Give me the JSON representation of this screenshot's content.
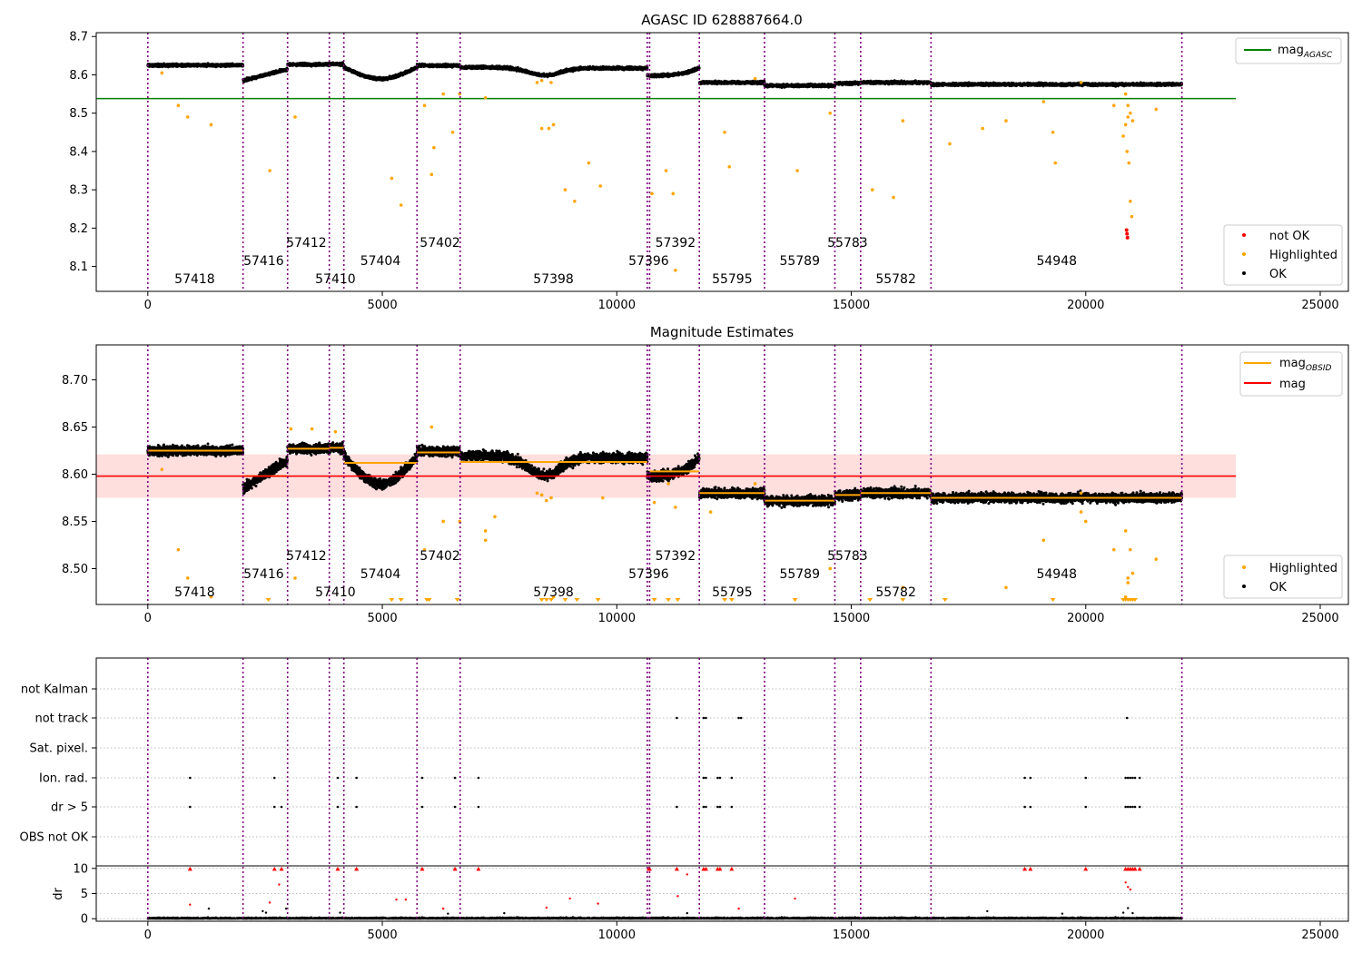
{
  "chart_data": [
    {
      "type": "scatter",
      "title": "AGASC ID 628887664.0",
      "xlim": [
        -1100,
        25600
      ],
      "ylim": [
        8.035,
        8.71
      ],
      "x_ticks": [
        0,
        5000,
        10000,
        15000,
        20000,
        25000
      ],
      "y_ticks": [
        8.1,
        8.2,
        8.3,
        8.4,
        8.5,
        8.6,
        8.7
      ],
      "y_tick_labels": [
        "8.1",
        "8.2",
        "8.3",
        "8.4",
        "8.5",
        "8.6",
        "8.7"
      ],
      "obs_boundaries": [
        0,
        2030,
        2980,
        3870,
        4180,
        5740,
        6660,
        10650,
        10700,
        11760,
        13150,
        14650,
        15200,
        16700,
        22050
      ],
      "obsid_labels": [
        {
          "text": "57418",
          "x": 1000,
          "row": 0
        },
        {
          "text": "57416",
          "x": 2470,
          "row": 1
        },
        {
          "text": "57412",
          "x": 3380,
          "row": 2
        },
        {
          "text": "57410",
          "x": 4000,
          "row": 0
        },
        {
          "text": "57404",
          "x": 4960,
          "row": 1
        },
        {
          "text": "57402",
          "x": 6230,
          "row": 2
        },
        {
          "text": "57398",
          "x": 8650,
          "row": 0
        },
        {
          "text": "57396",
          "x": 10680,
          "row": 1
        },
        {
          "text": "57392",
          "x": 11250,
          "row": 2
        },
        {
          "text": "55795",
          "x": 12460,
          "row": 0
        },
        {
          "text": "55789",
          "x": 13900,
          "row": 1
        },
        {
          "text": "55783",
          "x": 14920,
          "row": 2
        },
        {
          "text": "55782",
          "x": 15950,
          "row": 0
        },
        {
          "text": "54948",
          "x": 19380,
          "row": 1
        }
      ],
      "segments": [
        {
          "x": [
            0,
            2030
          ],
          "y": 8.625
        },
        {
          "x": [
            2030,
            2980
          ],
          "y": 8.598
        },
        {
          "x": [
            2980,
            3870
          ],
          "y": 8.627
        },
        {
          "x": [
            3870,
            4180
          ],
          "y": 8.628
        },
        {
          "x": [
            4180,
            5740
          ],
          "y": 8.612
        },
        {
          "x": [
            5740,
            6660
          ],
          "y": 8.623
        },
        {
          "x": [
            6660,
            10650
          ],
          "y": 8.613
        },
        {
          "x": [
            10700,
            11760
          ],
          "y": 8.603
        },
        {
          "x": [
            11760,
            13150
          ],
          "y": 8.58
        },
        {
          "x": [
            13150,
            14650
          ],
          "y": 8.572
        },
        {
          "x": [
            14650,
            15200
          ],
          "y": 8.578
        },
        {
          "x": [
            15200,
            16700
          ],
          "y": 8.58
        },
        {
          "x": [
            16700,
            22050
          ],
          "y": 8.575
        }
      ],
      "series": [
        {
          "name": "mag",
          "style": "line",
          "color": "#008000",
          "y": 8.538,
          "x_range": [
            -1100,
            23200
          ],
          "legend": "mag_AGASC"
        },
        {
          "name": "not OK",
          "style": "points",
          "color": "#ff0000",
          "points": [
            [
              20870,
              8.195
            ],
            [
              20880,
              8.185
            ],
            [
              20890,
              8.175
            ]
          ]
        },
        {
          "name": "Highlighted",
          "style": "points",
          "color": "#ffa500",
          "points": [
            [
              300,
              8.605
            ],
            [
              650,
              8.52
            ],
            [
              850,
              8.49
            ],
            [
              1350,
              8.47
            ],
            [
              2600,
              8.35
            ],
            [
              3140,
              8.49
            ],
            [
              5200,
              8.33
            ],
            [
              5400,
              8.26
            ],
            [
              5900,
              8.52
            ],
            [
              6050,
              8.34
            ],
            [
              6100,
              8.41
            ],
            [
              6300,
              8.55
            ],
            [
              6500,
              8.45
            ],
            [
              6650,
              8.55
            ],
            [
              7200,
              8.54
            ],
            [
              8400,
              8.46
            ],
            [
              8550,
              8.46
            ],
            [
              8650,
              8.47
            ],
            [
              8900,
              8.3
            ],
            [
              9100,
              8.27
            ],
            [
              9400,
              8.37
            ],
            [
              9650,
              8.31
            ],
            [
              10750,
              8.29
            ],
            [
              11050,
              8.35
            ],
            [
              11200,
              8.29
            ],
            [
              11250,
              8.09
            ],
            [
              12300,
              8.45
            ],
            [
              12400,
              8.36
            ],
            [
              12950,
              8.59
            ],
            [
              13850,
              8.35
            ],
            [
              14550,
              8.5
            ],
            [
              15450,
              8.3
            ],
            [
              15900,
              8.28
            ],
            [
              16100,
              8.48
            ],
            [
              17100,
              8.42
            ],
            [
              17800,
              8.46
            ],
            [
              18300,
              8.48
            ],
            [
              19100,
              8.53
            ],
            [
              19300,
              8.45
            ],
            [
              19350,
              8.37
            ],
            [
              19900,
              8.58
            ],
            [
              20600,
              8.52
            ],
            [
              20800,
              8.44
            ],
            [
              20850,
              8.47
            ],
            [
              20880,
              8.4
            ],
            [
              20900,
              8.49
            ],
            [
              20920,
              8.37
            ],
            [
              20950,
              8.27
            ],
            [
              20980,
              8.23
            ],
            [
              21500,
              8.51
            ]
          ]
        },
        {
          "name": "OK",
          "style": "band",
          "color": "#000000"
        }
      ],
      "legend_top": [
        "mag_AGASC"
      ],
      "legend_bottom": [
        "not OK",
        "Highlighted",
        "OK"
      ]
    },
    {
      "type": "scatter",
      "title": "Magnitude Estimates",
      "xlim": [
        -1100,
        25600
      ],
      "ylim": [
        8.462,
        8.737
      ],
      "x_ticks": [
        0,
        5000,
        10000,
        15000,
        20000,
        25000
      ],
      "y_ticks": [
        8.5,
        8.55,
        8.6,
        8.65,
        8.7
      ],
      "y_tick_labels": [
        "8.50",
        "8.55",
        "8.60",
        "8.65",
        "8.70"
      ],
      "mag": 8.598,
      "mag_band": [
        8.575,
        8.621
      ],
      "legend_top": [
        "mag_OBSID",
        "mag"
      ],
      "legend_bottom": [
        "Highlighted",
        "OK"
      ],
      "arrow_xs": [
        2570,
        5200,
        5400,
        5950,
        6000,
        6600,
        8400,
        8500,
        8600,
        8900,
        9150,
        9600,
        10800,
        11100,
        11300,
        12300,
        12450,
        13800,
        15400,
        16100,
        17000,
        19300,
        20800,
        20850,
        20900,
        20950,
        21000,
        21050
      ]
    },
    {
      "type": "scatter",
      "xlim": [
        -1100,
        25600
      ],
      "x_ticks": [
        0,
        5000,
        10000,
        15000,
        20000,
        25000
      ],
      "flag_rows": [
        "not Kalman",
        "not track",
        "Sat. pixel.",
        "Ion. rad.",
        "dr > 5",
        "OBS not OK"
      ],
      "flags": {
        "not track": [
          11280,
          11850,
          11900,
          12600,
          12650,
          20880
        ],
        "Ion. rad.": [
          900,
          2700,
          4050,
          4450,
          5850,
          6550,
          7050,
          11850,
          11900,
          12150,
          12200,
          12450,
          18700,
          18820,
          20000,
          20850,
          20900,
          20950,
          21000,
          21050,
          21150
        ],
        "dr > 5": [
          900,
          2700,
          2850,
          4050,
          4450,
          5850,
          6550,
          7050,
          11280,
          11850,
          11900,
          12150,
          12200,
          12450,
          18700,
          18820,
          20000,
          20850,
          20900,
          20950,
          21000,
          21050,
          21150
        ]
      },
      "dr_ylim": [
        -0.5,
        10.5
      ],
      "dr_ticks": [
        0,
        5,
        10
      ],
      "dr_label": "dr",
      "dr_red_points": [
        [
          900,
          2.8
        ],
        [
          2600,
          3.2
        ],
        [
          2800,
          6.8
        ],
        [
          5300,
          3.8
        ],
        [
          5500,
          3.8
        ],
        [
          6300,
          2.0
        ],
        [
          8500,
          2.2
        ],
        [
          9000,
          4.0
        ],
        [
          9600,
          3.0
        ],
        [
          11300,
          4.5
        ],
        [
          11500,
          8.8
        ],
        [
          12600,
          2.0
        ],
        [
          13800,
          4.0
        ],
        [
          20850,
          7.2
        ],
        [
          20900,
          6.3
        ],
        [
          20950,
          5.8
        ]
      ],
      "dr_black_points": [
        [
          1300,
          2.0
        ],
        [
          2450,
          1.5
        ],
        [
          2520,
          1.2
        ],
        [
          2950,
          2.0
        ],
        [
          4100,
          1.2
        ],
        [
          6400,
          1.0
        ],
        [
          7600,
          1.1
        ],
        [
          10700,
          1.2
        ],
        [
          11500,
          1.1
        ],
        [
          17900,
          1.5
        ],
        [
          19500,
          1.0
        ],
        [
          20800,
          1.2
        ],
        [
          20900,
          2.1
        ],
        [
          21000,
          1.1
        ]
      ]
    }
  ]
}
